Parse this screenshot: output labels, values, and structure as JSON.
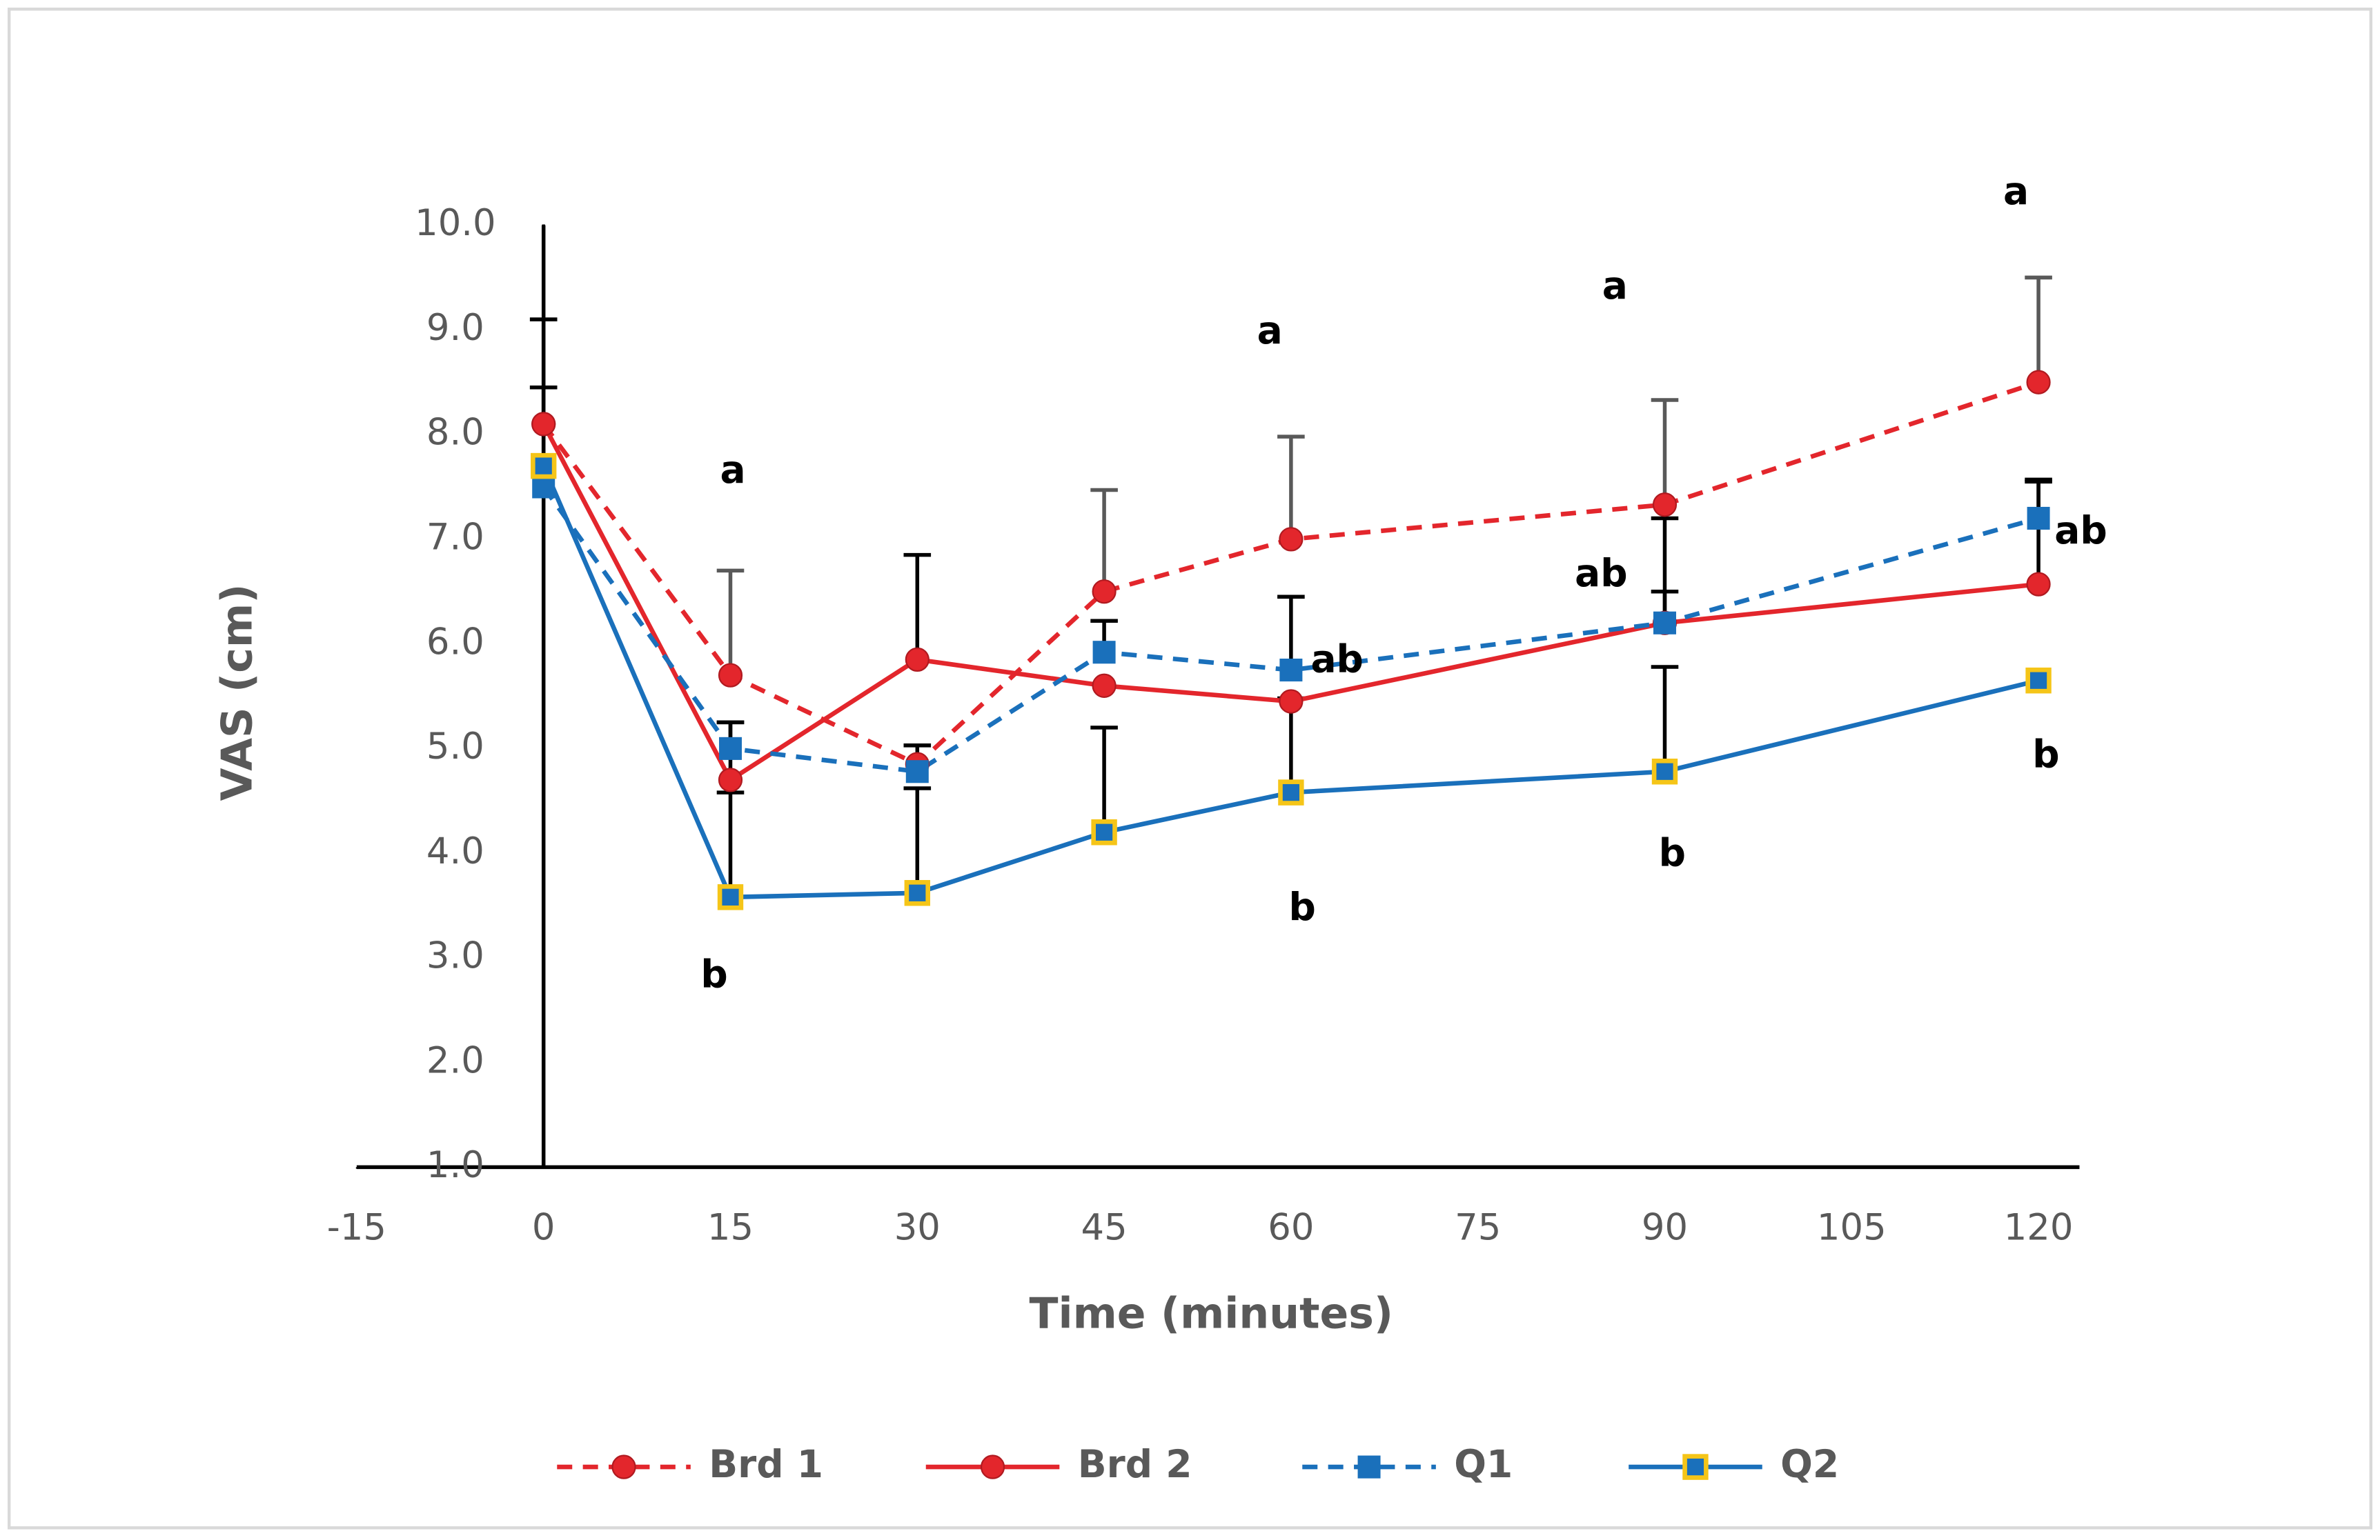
{
  "chart_data": {
    "type": "line",
    "x_label": "Time (minutes)",
    "y_label": "VAS (cm)",
    "x": [
      0,
      15,
      30,
      45,
      60,
      90,
      120
    ],
    "xlim": [
      -15,
      120
    ],
    "xticks": [
      -15,
      0,
      15,
      30,
      45,
      60,
      75,
      90,
      105,
      120
    ],
    "ylim": [
      1,
      10
    ],
    "yticks": [
      {
        "value": 1,
        "label": "1.0"
      },
      {
        "value": 2,
        "label": "2.0"
      },
      {
        "value": 3,
        "label": "3.0"
      },
      {
        "value": 4,
        "label": "4.0"
      },
      {
        "value": 5,
        "label": "5.0"
      },
      {
        "value": 6,
        "label": "6.0"
      },
      {
        "value": 7,
        "label": "7.0"
      },
      {
        "value": 8,
        "label": "8.0"
      },
      {
        "value": 9,
        "label": "9.0"
      },
      {
        "value": 10,
        "label": "10.0"
      }
    ],
    "legend": "bottom",
    "series": [
      {
        "name": "Brd 1",
        "color": "#e3262c",
        "dash": true,
        "marker": "circle",
        "error_color": "#595959",
        "values": [
          8.1,
          5.7,
          4.85,
          6.5,
          7.0,
          7.33,
          8.5
        ],
        "errors": [
          1.0,
          1.0,
          null,
          0.97,
          0.98,
          1.0,
          1.0
        ]
      },
      {
        "name": "Brd 2",
        "color": "#e3262c",
        "dash": false,
        "marker": "circle",
        "error_color": "#000000",
        "values": [
          8.1,
          4.7,
          5.85,
          5.6,
          5.45,
          6.2,
          6.57
        ],
        "errors": [
          1.0,
          0.55,
          1.0,
          null,
          null,
          1.0,
          1.0
        ]
      },
      {
        "name": "Q1",
        "color": "#1a70bb",
        "dash": true,
        "marker": "square",
        "error_color": "#000000",
        "values": [
          7.5,
          5.0,
          4.78,
          5.92,
          5.75,
          6.2,
          7.2
        ],
        "errors": [
          0.95,
          0.25,
          0.25,
          0.3,
          0.7,
          0.3,
          0.35
        ]
      },
      {
        "name": "Q2",
        "color": "#1a70bb",
        "dash": false,
        "marker": "square-yellow",
        "error_color": "#000000",
        "values": [
          7.7,
          3.58,
          3.62,
          4.2,
          4.58,
          4.78,
          5.65
        ],
        "errors": [
          0.75,
          1.0,
          1.0,
          1.0,
          0.9,
          1.0,
          null
        ]
      }
    ],
    "annotations": [
      {
        "text": "a",
        "x": 15.2,
        "y": 7.64
      },
      {
        "text": "b",
        "x": 13.7,
        "y": 2.82
      },
      {
        "text": "a",
        "x": 58.3,
        "y": 8.97
      },
      {
        "text": "ab",
        "x": 63.7,
        "y": 5.83
      },
      {
        "text": "b",
        "x": 60.9,
        "y": 3.46
      },
      {
        "text": "a",
        "x": 86,
        "y": 9.4
      },
      {
        "text": "ab",
        "x": 84.9,
        "y": 6.65
      },
      {
        "text": "b",
        "x": 90.6,
        "y": 3.98
      },
      {
        "text": "a",
        "x": 118.2,
        "y": 10.3
      },
      {
        "text": "ab",
        "x": 123.4,
        "y": 7.06
      },
      {
        "text": "b",
        "x": 120.6,
        "y": 4.92
      }
    ]
  }
}
